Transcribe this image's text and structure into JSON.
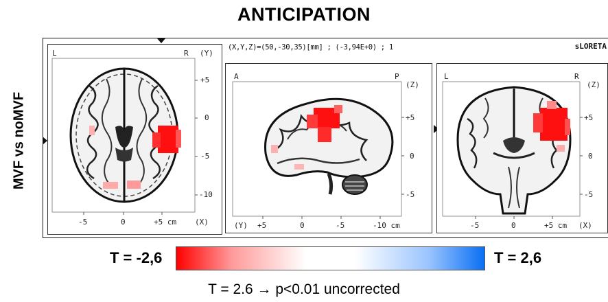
{
  "title": "ANTICIPATION",
  "side_label": "MVF vs noMVF",
  "coord_readout": "(X,Y,Z)=(50,-30,35)[mm] ; (-3,94E+0) ; 1",
  "logo": "sLORETA",
  "panels": {
    "axial": {
      "left_label": "L",
      "right_label": "R",
      "axis_name": "(Y)",
      "right_ticks": [
        "+5",
        "0",
        "-5",
        "-10"
      ],
      "bottom_ticks": [
        "-5",
        "0",
        "+5 cm"
      ],
      "bottom_axis": "(X)"
    },
    "sagittal": {
      "left_label": "A",
      "right_label": "P",
      "axis_name": "(Z)",
      "right_ticks": [
        "+5",
        "0",
        "-5"
      ],
      "bottom_axis_prefix": "(Y)",
      "bottom_ticks": [
        "+5",
        "0",
        "-5",
        "-10 cm"
      ]
    },
    "coronal": {
      "left_label": "L",
      "right_label": "R",
      "axis_name": "(Z)",
      "right_ticks": [
        "+5",
        "0",
        "-5"
      ],
      "bottom_ticks": [
        "-5",
        "0",
        "+5 cm"
      ],
      "bottom_axis": "(X)"
    }
  },
  "color_scale": {
    "min_label": "T = -2,6",
    "max_label": "T = 2,6",
    "min_color": "#ff0000",
    "max_color": "#0a6ff2"
  },
  "threshold_note": "T = 2.6 → p<0.01 uncorrected"
}
